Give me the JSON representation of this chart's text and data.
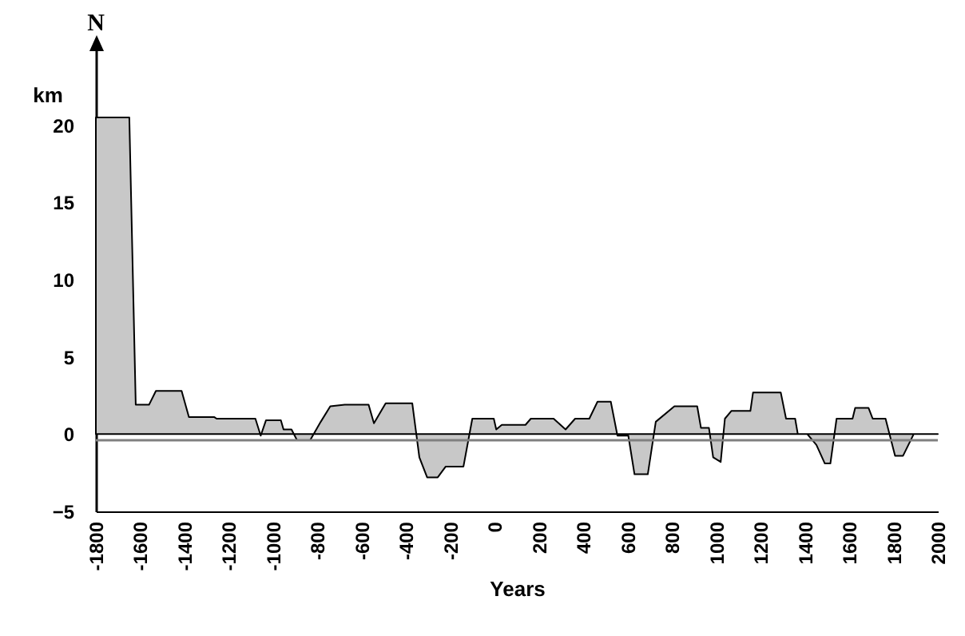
{
  "chart_data": {
    "type": "area",
    "xlabel": "Years",
    "ylabel": "km",
    "annotations": [
      "N"
    ],
    "x": [
      -1800,
      -1649,
      -1620,
      -1560,
      -1529,
      -1413,
      -1380,
      -1265,
      -1255,
      -1080,
      -1056,
      -1032,
      -965,
      -953,
      -917,
      -892,
      -833,
      -785,
      -742,
      -677,
      -569,
      -545,
      -492,
      -372,
      -340,
      -305,
      -257,
      -221,
      -141,
      -101,
      -4,
      7,
      32,
      139,
      163,
      266,
      320,
      363,
      427,
      464,
      524,
      554,
      603,
      631,
      691,
      727,
      811,
      914,
      931,
      967,
      986,
      1020,
      1039,
      1068,
      1154,
      1166,
      1291,
      1315,
      1356,
      1368,
      1411,
      1452,
      1490,
      1515,
      1543,
      1615,
      1627,
      1687,
      1706,
      1764,
      1807,
      1843,
      1891,
      2000
    ],
    "series": [
      {
        "color": "#c8c8c8",
        "values": [
          20.5,
          20.5,
          1.9,
          1.9,
          2.8,
          2.8,
          1.1,
          1.1,
          1.0,
          1.0,
          -0.1,
          0.9,
          0.9,
          0.3,
          0.3,
          -0.4,
          -0.4,
          0.8,
          1.8,
          1.9,
          1.9,
          0.7,
          2.0,
          2.0,
          -1.5,
          -2.8,
          -2.8,
          -2.1,
          -2.1,
          1.0,
          1.0,
          0.3,
          0.6,
          0.6,
          1.0,
          1.0,
          0.3,
          1.0,
          1.0,
          2.1,
          2.1,
          -0.1,
          -0.1,
          -2.6,
          -2.6,
          0.8,
          1.8,
          1.8,
          0.4,
          0.4,
          -1.5,
          -1.8,
          1.0,
          1.5,
          1.5,
          2.7,
          2.7,
          1.0,
          1.0,
          0.0,
          0.0,
          -0.7,
          -1.9,
          -1.9,
          1.0,
          1.0,
          1.7,
          1.7,
          1.0,
          1.0,
          -1.4,
          -1.4,
          0.0,
          0.0
        ]
      }
    ],
    "xlim": [
      -1800,
      2000
    ],
    "xticks": [
      -1800,
      -1600,
      -1400,
      -1200,
      -1000,
      -800,
      -600,
      -400,
      -200,
      0,
      200,
      400,
      600,
      800,
      1000,
      1200,
      1400,
      1600,
      1800,
      2000
    ],
    "ylim": [
      -5,
      25
    ],
    "yticks": [
      -5,
      0,
      5,
      10,
      15,
      20
    ],
    "ref_lines": [
      {
        "axis": "y",
        "value": -0.4,
        "color": "#808080"
      }
    ],
    "grid": false
  }
}
